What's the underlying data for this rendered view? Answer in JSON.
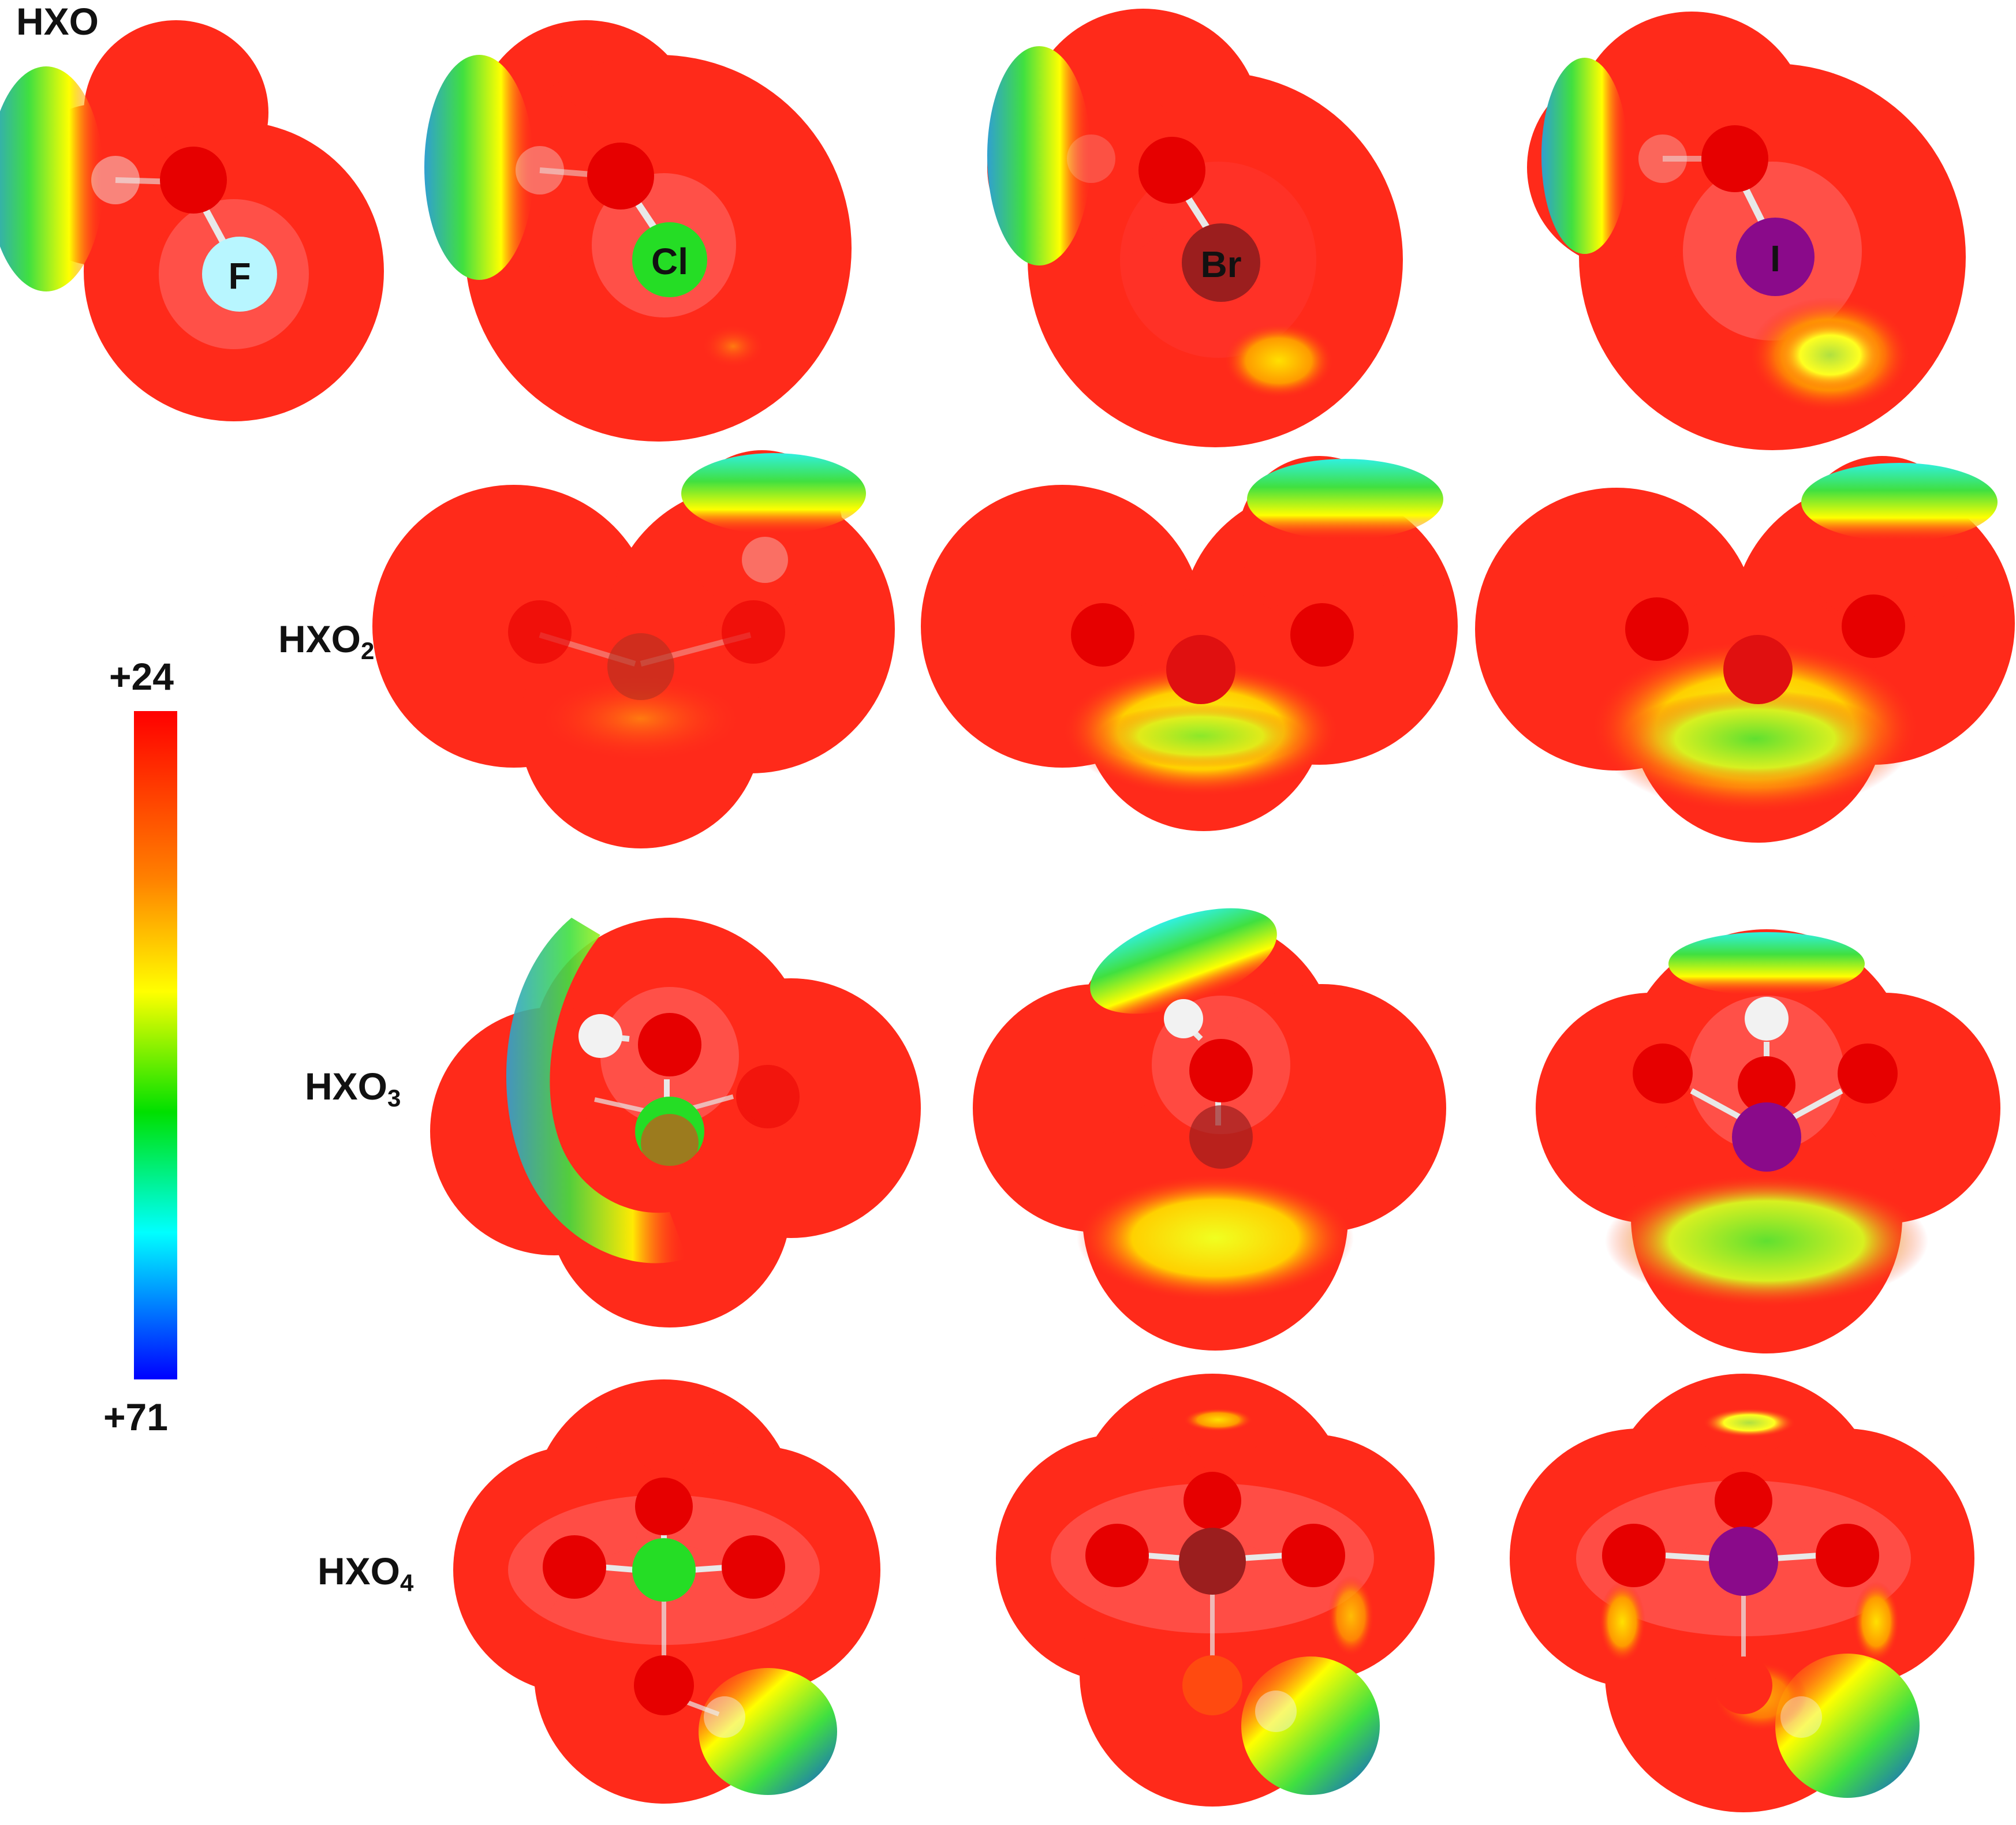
{
  "figure": {
    "row_labels": [
      "HXO",
      "HXO",
      "HXO",
      "HXO"
    ],
    "row_subscripts": [
      "",
      "2",
      "3",
      "4"
    ],
    "halogens": [
      "F",
      "Cl",
      "Br",
      "I"
    ],
    "colorbar": {
      "max_label": "+24",
      "min_label": "+71",
      "colors": [
        "#ff0000",
        "#ff8000",
        "#ffff00",
        "#00e000",
        "#00ffff",
        "#0000ff"
      ]
    }
  },
  "colors": {
    "surface": "#ff1c1c",
    "oxygen": "#e60000",
    "hydrogen": "#f2f2f2",
    "F": "#b8f6ff",
    "Cl": "#25dd25",
    "Br": "#9b1e1e",
    "I": "#8a0a8a"
  }
}
